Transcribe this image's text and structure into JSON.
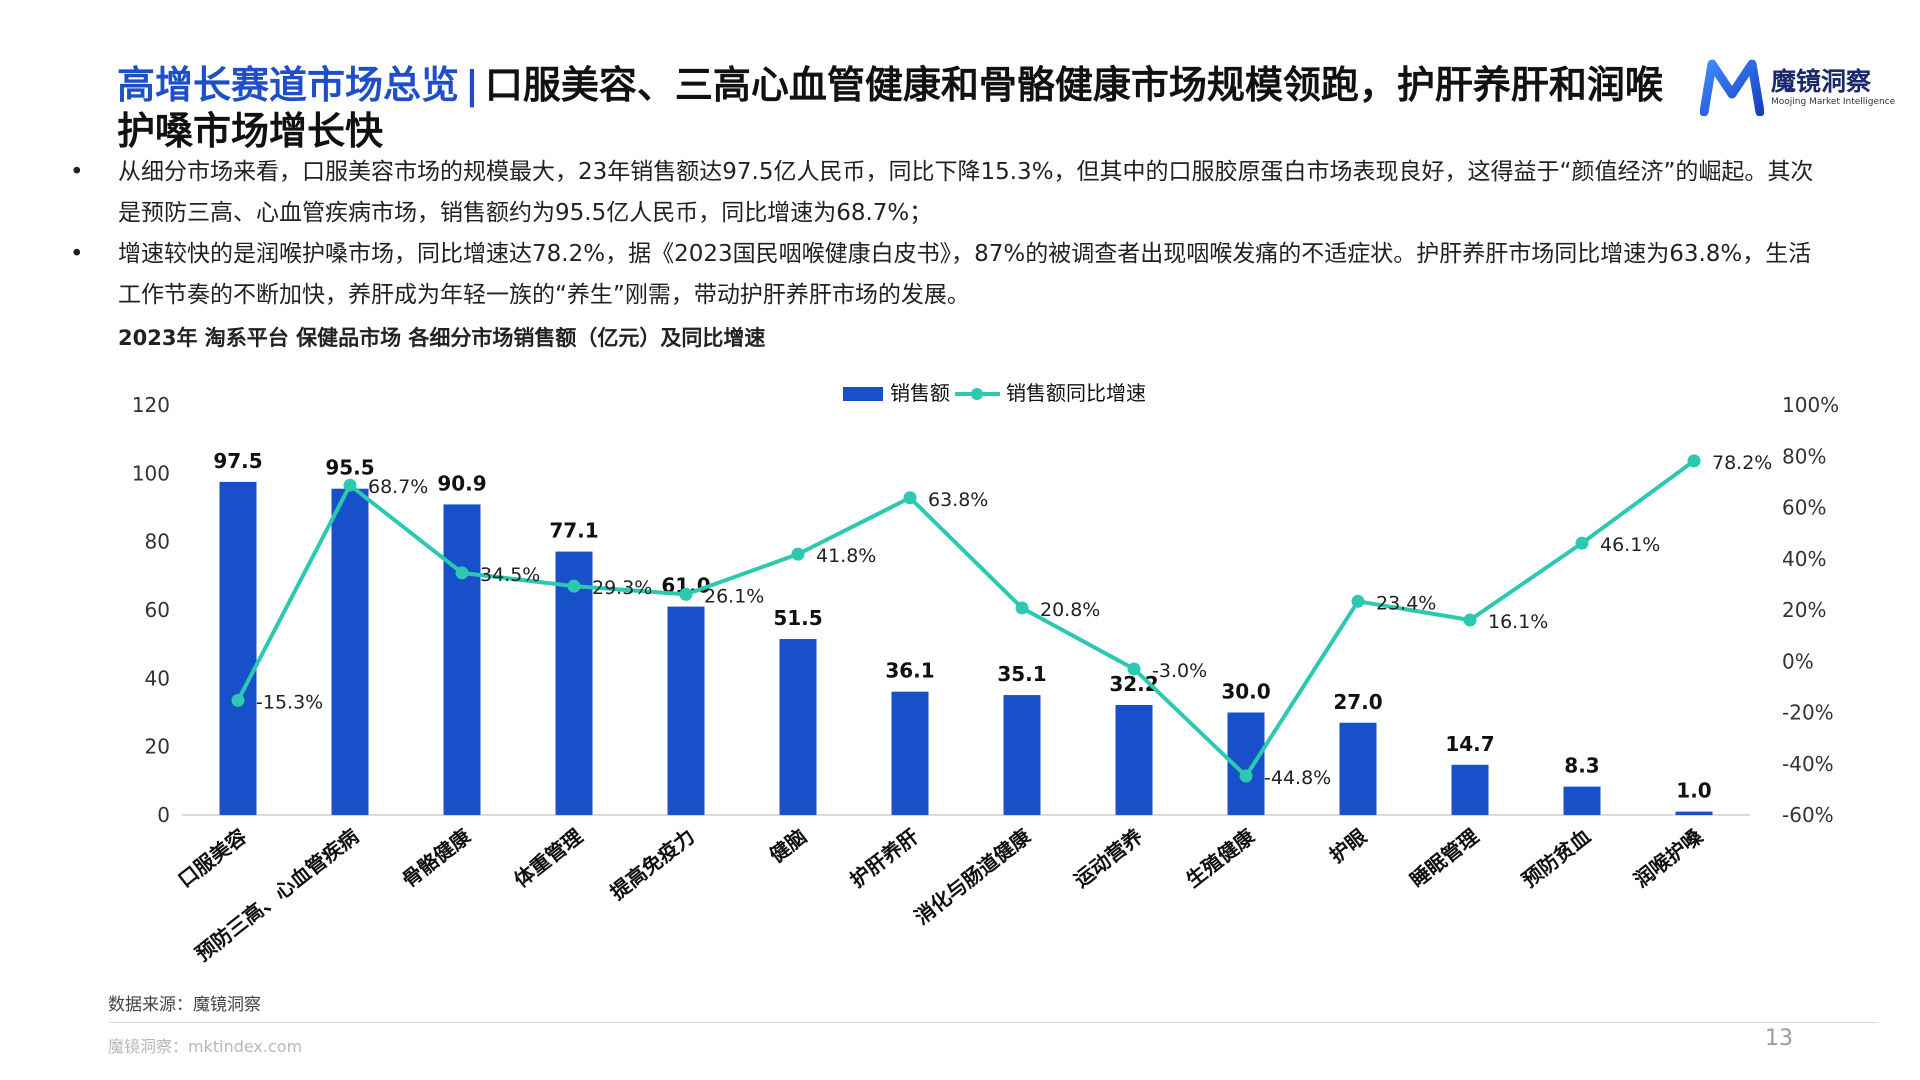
{
  "title": {
    "highlight": "高增长赛道市场总览",
    "separator": "|",
    "main": "口服美容、三高心血管健康和骨骼健康市场规模领跑，护肝养肝和润喉护嗓市场增长快"
  },
  "logo": {
    "name": "魔镜洞察",
    "subtitle": "Moojing Market Intelligence"
  },
  "bullets": [
    {
      "marker": "•",
      "text": "从细分市场来看，口服美容市场的规模最大，23年销售额达97.5亿人民币，同比下降15.3%，但其中的口服胶原蛋白市场表现良好，这得益于“颜值经济”的崛起。其次是预防三高、心血管疾病市场，销售额约为95.5亿人民币，同比增速为68.7%；"
    },
    {
      "marker": "•",
      "text": "增速较快的是润喉护嗓市场，同比增速达78.2%，据《2023国民咽喉健康白皮书》，87%的被调查者出现咽喉发痛的不适症状。护肝养肝市场同比增速为63.8%，生活工作节奏的不断加快，养肝成为年轻一族的“养生”刚需，带动护肝养肝市场的发展。"
    }
  ],
  "chart_title": "2023年 淘系平台 保健品市场 各细分市场销售额（亿元）及同比增速",
  "chart_data": {
    "type": "bar",
    "categories": [
      "口服美容",
      "预防三高、心血管疾病",
      "骨骼健康",
      "体重管理",
      "提高免疫力",
      "健脑",
      "护肝养肝",
      "消化与肠道健康",
      "运动营养",
      "生殖健康",
      "护眼",
      "睡眠管理",
      "预防贫血",
      "润喉护嗓"
    ],
    "series": [
      {
        "name": "销售额",
        "type": "bar",
        "axis": "left",
        "color": "#1750c8",
        "values": [
          97.5,
          95.5,
          90.9,
          77.1,
          61.0,
          51.5,
          36.1,
          35.1,
          32.2,
          30.0,
          27.0,
          14.7,
          8.3,
          1.0
        ],
        "labels": [
          "97.5",
          "95.5",
          "90.9",
          "77.1",
          "61.0",
          "51.5",
          "36.1",
          "35.1",
          "32.2",
          "30.0",
          "27.0",
          "14.7",
          "8.3",
          "1.0"
        ]
      },
      {
        "name": "销售额同比增速",
        "type": "line",
        "axis": "right",
        "color": "#2cc9b0",
        "values": [
          -15.3,
          68.7,
          34.5,
          29.3,
          26.1,
          41.8,
          63.8,
          20.8,
          -3.0,
          -44.8,
          23.4,
          16.1,
          46.1,
          78.2
        ],
        "labels": [
          "-15.3%",
          "68.7%",
          "34.5%",
          "29.3%",
          "26.1%",
          "41.8%",
          "63.8%",
          "20.8%",
          "-3.0%",
          "-44.8%",
          "23.4%",
          "16.1%",
          "46.1%",
          "78.2%"
        ]
      }
    ],
    "y_left": {
      "min": 0,
      "max": 120,
      "ticks": [
        "0",
        "20",
        "40",
        "60",
        "80",
        "100",
        "120"
      ]
    },
    "y_right": {
      "min": -60,
      "max": 100,
      "ticks": [
        "-60%",
        "-40%",
        "-20%",
        "0%",
        "20%",
        "40%",
        "60%",
        "80%",
        "100%"
      ]
    },
    "legend_position": "top-center",
    "grid": false
  },
  "source": "数据来源：魔镜洞察",
  "footer": "魔镜洞察：mktindex.com",
  "page_number": "13"
}
